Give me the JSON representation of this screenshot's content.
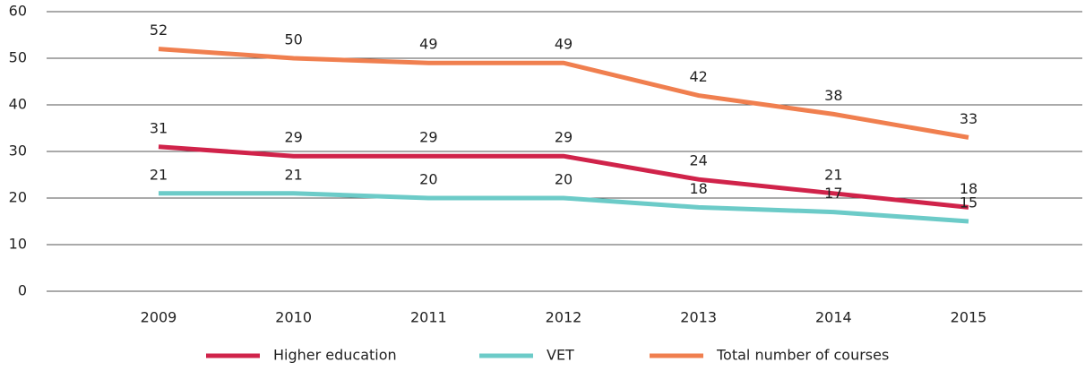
{
  "chart_data": {
    "type": "line",
    "categories": [
      "2009",
      "2010",
      "2011",
      "2012",
      "2013",
      "2014",
      "2015"
    ],
    "series": [
      {
        "name": "Higher education",
        "color": "#d0234a",
        "values": [
          31,
          29,
          29,
          29,
          24,
          21,
          18
        ]
      },
      {
        "name": "VET",
        "color": "#6ccbc8",
        "values": [
          21,
          21,
          20,
          20,
          18,
          17,
          15
        ]
      },
      {
        "name": "Total number of courses",
        "color": "#f07f4f",
        "values": [
          52,
          50,
          49,
          49,
          42,
          38,
          33
        ]
      }
    ],
    "ylim": [
      0,
      60
    ],
    "yticks": [
      0,
      10,
      20,
      30,
      40,
      50,
      60
    ],
    "grid": true,
    "legend": "bottom"
  }
}
